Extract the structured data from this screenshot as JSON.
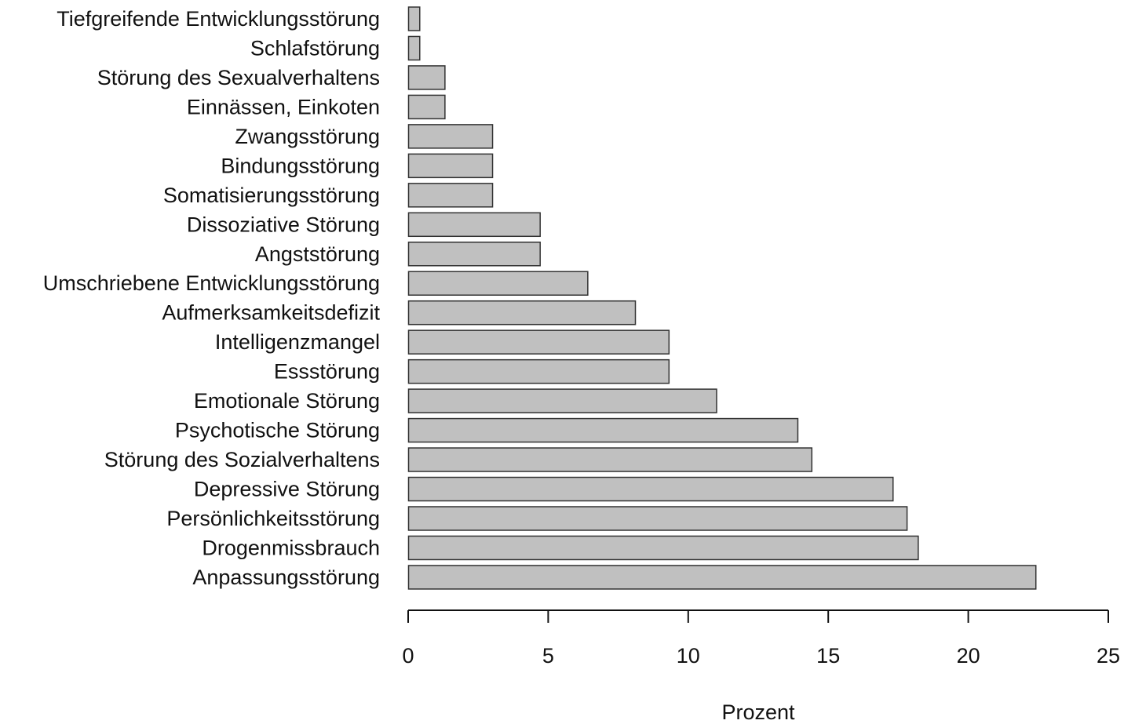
{
  "chart_data": {
    "type": "bar",
    "orientation": "horizontal",
    "title": "",
    "xlabel": "Prozent",
    "ylabel": "",
    "xlim": [
      0,
      25
    ],
    "x_ticks": [
      "0",
      "5",
      "10",
      "15",
      "20",
      "25"
    ],
    "x_tick_values": [
      0,
      5,
      10,
      15,
      20,
      25
    ],
    "grid": false,
    "bar_color": "#c0c0c0",
    "bar_edge_color": "#333333",
    "categories": [
      "Tiefgreifende Entwicklungsstörung",
      "Schlafstörung",
      "Störung des Sexualverhaltens",
      "Einnässen, Einkoten",
      "Zwangsstörung",
      "Bindungsstörung",
      "Somatisierungsstörung",
      "Dissoziative Störung",
      "Angststörung",
      "Umschriebene Entwicklungsstörung",
      "Aufmerksamkeitsdefizit",
      "Intelligenzmangel",
      "Essstörung",
      "Emotionale Störung",
      "Psychotische Störung",
      "Störung des Sozialverhaltens",
      "Depressive Störung",
      "Persönlichkeitsstörung",
      "Drogenmissbrauch",
      "Anpassungsstörung"
    ],
    "values": [
      0.4,
      0.4,
      1.3,
      1.3,
      3.0,
      3.0,
      3.0,
      4.7,
      4.7,
      6.4,
      8.1,
      9.3,
      9.3,
      11.0,
      13.9,
      14.4,
      17.3,
      17.8,
      18.2,
      22.4
    ]
  }
}
